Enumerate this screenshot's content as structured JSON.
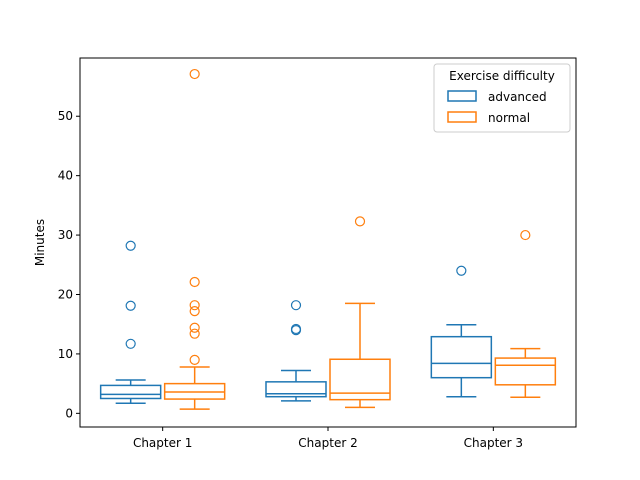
{
  "chart_data": {
    "type": "box",
    "ylabel": "Minutes",
    "xlabel": "",
    "ylim": [
      -2.3,
      59.8
    ],
    "yticks": [
      0,
      10,
      20,
      30,
      40,
      50
    ],
    "categories": [
      "Chapter 1",
      "Chapter 2",
      "Chapter 3"
    ],
    "legend": {
      "title": "Exercise difficulty",
      "position": "top-right"
    },
    "series": [
      {
        "name": "advanced",
        "color": "#1f77b4",
        "boxes": [
          {
            "whisker_low": 1.7,
            "q1": 2.5,
            "median": 3.2,
            "q3": 4.7,
            "whisker_high": 5.6,
            "outliers": [
              11.7,
              18.1,
              28.2
            ]
          },
          {
            "whisker_low": 2.1,
            "q1": 2.8,
            "median": 3.3,
            "q3": 5.3,
            "whisker_high": 7.2,
            "outliers": [
              14.0,
              14.2,
              18.2
            ]
          },
          {
            "whisker_low": 2.8,
            "q1": 6.0,
            "median": 8.4,
            "q3": 12.9,
            "whisker_high": 14.9,
            "outliers": [
              24.0
            ]
          }
        ]
      },
      {
        "name": "normal",
        "color": "#ff7f0e",
        "boxes": [
          {
            "whisker_low": 0.7,
            "q1": 2.4,
            "median": 3.6,
            "q3": 5.0,
            "whisker_high": 7.8,
            "outliers": [
              9.0,
              13.4,
              14.4,
              17.2,
              18.2,
              22.1,
              57.1
            ]
          },
          {
            "whisker_low": 1.0,
            "q1": 2.3,
            "median": 3.4,
            "q3": 9.1,
            "whisker_high": 18.5,
            "outliers": [
              32.3
            ]
          },
          {
            "whisker_low": 2.7,
            "q1": 4.8,
            "median": 8.1,
            "q3": 9.3,
            "whisker_high": 10.9,
            "outliers": [
              30.0
            ]
          }
        ]
      }
    ]
  }
}
